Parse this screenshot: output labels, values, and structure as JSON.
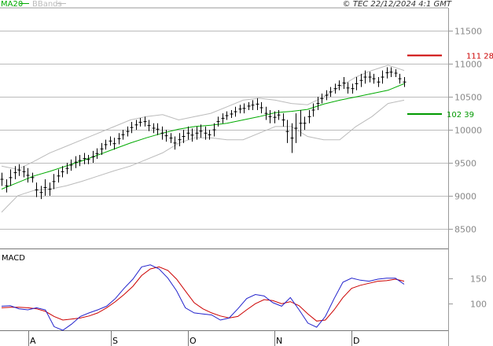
{
  "chart_data": {
    "type": "line",
    "header": {
      "legend": [
        {
          "name": "MA20",
          "color": "#00aa00"
        },
        {
          "name": "BBands",
          "color": "#bbbbbb"
        }
      ],
      "copyright": "© TEC 22/12/2024 4:1 GMT"
    },
    "price_panel": {
      "ylim": [
        8200,
        11850
      ],
      "yticks": [
        "11500",
        "11000",
        "10500",
        "10000",
        "9500",
        "9000",
        "8500"
      ],
      "ytick_values": [
        11500,
        11000,
        10500,
        10000,
        9500,
        9000,
        8500
      ],
      "resistance": {
        "value": 11128,
        "label": "111 28",
        "color": "#cc0000"
      },
      "support": {
        "value": 10239,
        "label": "102 39",
        "color": "#009900"
      },
      "ohlc": [
        [
          9350,
          9150
        ],
        [
          9250,
          9050
        ],
        [
          9400,
          9150
        ],
        [
          9450,
          9250
        ],
        [
          9480,
          9300
        ],
        [
          9450,
          9280
        ],
        [
          9420,
          9200
        ],
        [
          9350,
          9200
        ],
        [
          9200,
          8980
        ],
        [
          9150,
          8950
        ],
        [
          9250,
          9000
        ],
        [
          9200,
          9000
        ],
        [
          9330,
          9100
        ],
        [
          9400,
          9200
        ],
        [
          9450,
          9280
        ],
        [
          9500,
          9330
        ],
        [
          9550,
          9380
        ],
        [
          9600,
          9420
        ],
        [
          9620,
          9450
        ],
        [
          9650,
          9480
        ],
        [
          9620,
          9480
        ],
        [
          9680,
          9500
        ],
        [
          9720,
          9560
        ],
        [
          9800,
          9620
        ],
        [
          9850,
          9700
        ],
        [
          9900,
          9760
        ],
        [
          9880,
          9700
        ],
        [
          9950,
          9780
        ],
        [
          10000,
          9850
        ],
        [
          10050,
          9900
        ],
        [
          10120,
          9950
        ],
        [
          10150,
          10000
        ],
        [
          10180,
          10050
        ],
        [
          10200,
          10050
        ],
        [
          10150,
          9980
        ],
        [
          10100,
          9950
        ],
        [
          10100,
          9920
        ],
        [
          10050,
          9850
        ],
        [
          10000,
          9820
        ],
        [
          9950,
          9800
        ],
        [
          9900,
          9700
        ],
        [
          9950,
          9750
        ],
        [
          10000,
          9800
        ],
        [
          10050,
          9850
        ],
        [
          10020,
          9820
        ],
        [
          10050,
          9850
        ],
        [
          10080,
          9880
        ],
        [
          10050,
          9850
        ],
        [
          10000,
          9850
        ],
        [
          10100,
          9900
        ],
        [
          10200,
          10050
        ],
        [
          10250,
          10100
        ],
        [
          10280,
          10150
        ],
        [
          10300,
          10180
        ],
        [
          10350,
          10200
        ],
        [
          10380,
          10250
        ],
        [
          10400,
          10250
        ],
        [
          10420,
          10300
        ],
        [
          10450,
          10300
        ],
        [
          10480,
          10300
        ],
        [
          10420,
          10250
        ],
        [
          10350,
          10150
        ],
        [
          10300,
          10100
        ],
        [
          10280,
          10100
        ],
        [
          10300,
          10150
        ],
        [
          10250,
          10050
        ],
        [
          10150,
          9800
        ],
        [
          10100,
          9650
        ],
        [
          10250,
          9800
        ],
        [
          10300,
          9900
        ],
        [
          10200,
          10000
        ],
        [
          10300,
          10100
        ],
        [
          10400,
          10200
        ],
        [
          10500,
          10300
        ],
        [
          10550,
          10400
        ],
        [
          10600,
          10450
        ],
        [
          10650,
          10500
        ],
        [
          10700,
          10550
        ],
        [
          10750,
          10600
        ],
        [
          10800,
          10620
        ],
        [
          10720,
          10550
        ],
        [
          10700,
          10550
        ],
        [
          10800,
          10600
        ],
        [
          10850,
          10650
        ],
        [
          10900,
          10700
        ],
        [
          10880,
          10720
        ],
        [
          10850,
          10700
        ],
        [
          10800,
          10650
        ],
        [
          10900,
          10700
        ],
        [
          10950,
          10780
        ],
        [
          10950,
          10800
        ],
        [
          10920,
          10800
        ],
        [
          10850,
          10700
        ],
        [
          10800,
          10650
        ]
      ],
      "ma20": [
        9100,
        9200,
        9300,
        9370,
        9450,
        9530,
        9620,
        9710,
        9800,
        9880,
        9950,
        10010,
        10050,
        10070,
        10100,
        10150,
        10200,
        10260,
        10280,
        10310,
        10390,
        10450,
        10500,
        10550,
        10600,
        10700
      ],
      "bband_upper": [
        9450,
        9400,
        9520,
        9650,
        9750,
        9850,
        9950,
        10050,
        10150,
        10200,
        10230,
        10150,
        10200,
        10250,
        10350,
        10450,
        10480,
        10450,
        10400,
        10380,
        10500,
        10650,
        10800,
        10900,
        10980,
        10900
      ],
      "bband_lower": [
        8750,
        9000,
        9080,
        9100,
        9150,
        9220,
        9300,
        9380,
        9450,
        9550,
        9650,
        9800,
        9880,
        9880,
        9850,
        9850,
        9950,
        10050,
        10050,
        9900,
        9850,
        9850,
        10050,
        10200,
        10400,
        10450
      ]
    },
    "macd_panel": {
      "label": "MACD",
      "ylim": [
        48,
        208
      ],
      "yticks": [
        "150",
        "100"
      ],
      "ytick_values": [
        150,
        100
      ],
      "macd": [
        95,
        96,
        90,
        88,
        92,
        88,
        55,
        48,
        60,
        75,
        82,
        88,
        95,
        110,
        130,
        148,
        172,
        176,
        168,
        150,
        125,
        92,
        82,
        80,
        78,
        68,
        72,
        90,
        110,
        118,
        115,
        102,
        95,
        112,
        88,
        62,
        54,
        75,
        110,
        142,
        150,
        146,
        144,
        148,
        150,
        150,
        138
      ],
      "signal": [
        92,
        93,
        93,
        92,
        90,
        85,
        75,
        68,
        70,
        72,
        76,
        82,
        92,
        104,
        118,
        134,
        155,
        168,
        172,
        165,
        148,
        125,
        102,
        90,
        82,
        76,
        72,
        75,
        88,
        100,
        108,
        106,
        100,
        104,
        96,
        80,
        66,
        68,
        88,
        112,
        130,
        136,
        140,
        144,
        145,
        148,
        144
      ]
    },
    "x_axis": {
      "labels": [
        "A",
        "S",
        "O",
        "N",
        "D"
      ]
    },
    "colors": {
      "price_bar": "#000000",
      "ma20": "#00aa00",
      "bbands": "#bbbbbb",
      "macd": "#2222cc",
      "signal": "#cc0000",
      "grid": "#bbbbbb"
    }
  }
}
